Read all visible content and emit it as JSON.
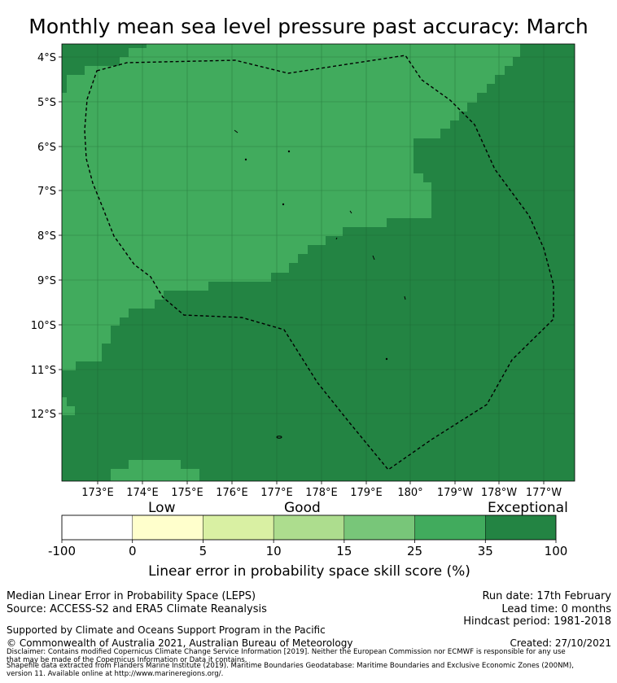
{
  "title": "Monthly mean sea level pressure past accuracy: March",
  "map": {
    "lat_labels": [
      "4°S",
      "5°S",
      "6°S",
      "7°S",
      "8°S",
      "9°S",
      "10°S",
      "11°S",
      "12°S"
    ],
    "lon_labels": [
      "173°E",
      "174°E",
      "175°E",
      "176°E",
      "177°E",
      "178°E",
      "179°E",
      "180°",
      "179°W",
      "178°W",
      "177°W"
    ],
    "colors": {
      "good_high": "#41ab5d",
      "exceptional": "#238443",
      "gridline": "#1a5c2c",
      "boundary": "#000000"
    }
  },
  "colorbar": {
    "category_labels": {
      "low": "Low",
      "good": "Good",
      "exceptional": "Exceptional"
    },
    "tick_labels": [
      "-100",
      "0",
      "5",
      "10",
      "15",
      "25",
      "35",
      "100"
    ],
    "bin_colors": [
      "#ffffff",
      "#ffffcc",
      "#d9f0a3",
      "#addd8e",
      "#78c679",
      "#41ab5d",
      "#238443"
    ],
    "axis_title": "Linear error in probability space skill score (%)"
  },
  "footer": {
    "left_line1": "Median Linear Error in Probability Space (LEPS)",
    "left_line2": "Source: ACCESS-S2 and ERA5 Climate Reanalysis",
    "support": "Supported by Climate and Oceans Support Program in the Pacific",
    "copyright": "© Commonwealth of Australia 2021, Australian Bureau of Meteorology",
    "run_date": "Run date: 17th February",
    "lead_time": "Lead time: 0 months",
    "hindcast": "Hindcast period: 1981-2018",
    "created": "Created: 27/10/2021",
    "disclaimer1": "Disclaimer: Contains modified Copernicus Climate Change Service Information [2019]. Neither the European Commission nor ECMWF is responsible for any use",
    "disclaimer2": "that may be made of the Copernicus Information or Data it contains.",
    "shapefile1": "Shapefile data extracted from Flanders Marine Institute (2019). Maritime Boundaries Geodatabase: Maritime Boundaries and Exclusive Economic Zones (200NM),",
    "shapefile2": "version 11. Available online at http://www.marineregions.org/."
  }
}
